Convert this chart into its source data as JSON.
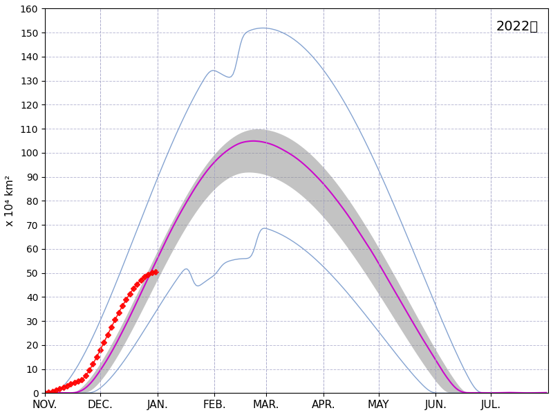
{
  "title": "2022年",
  "ylabel": "x 10⁴ km²",
  "ylim": [
    0,
    160
  ],
  "yticks": [
    0,
    10,
    20,
    30,
    40,
    50,
    60,
    70,
    80,
    90,
    100,
    110,
    120,
    130,
    140,
    150,
    160
  ],
  "month_labels": [
    "NOV.",
    "DEC.",
    "JAN.",
    "FEB.",
    "MAR.",
    "APR.",
    "MAY",
    "JUN.",
    "JUL."
  ],
  "background_color": "#ffffff",
  "grid_color": "#aaaacc",
  "mean_color": "#cc00cc",
  "band_color": "#888888",
  "max_color": "#7799cc",
  "min_color": "#7799cc",
  "obs_color": "#ff0000",
  "obs_marker": "D"
}
